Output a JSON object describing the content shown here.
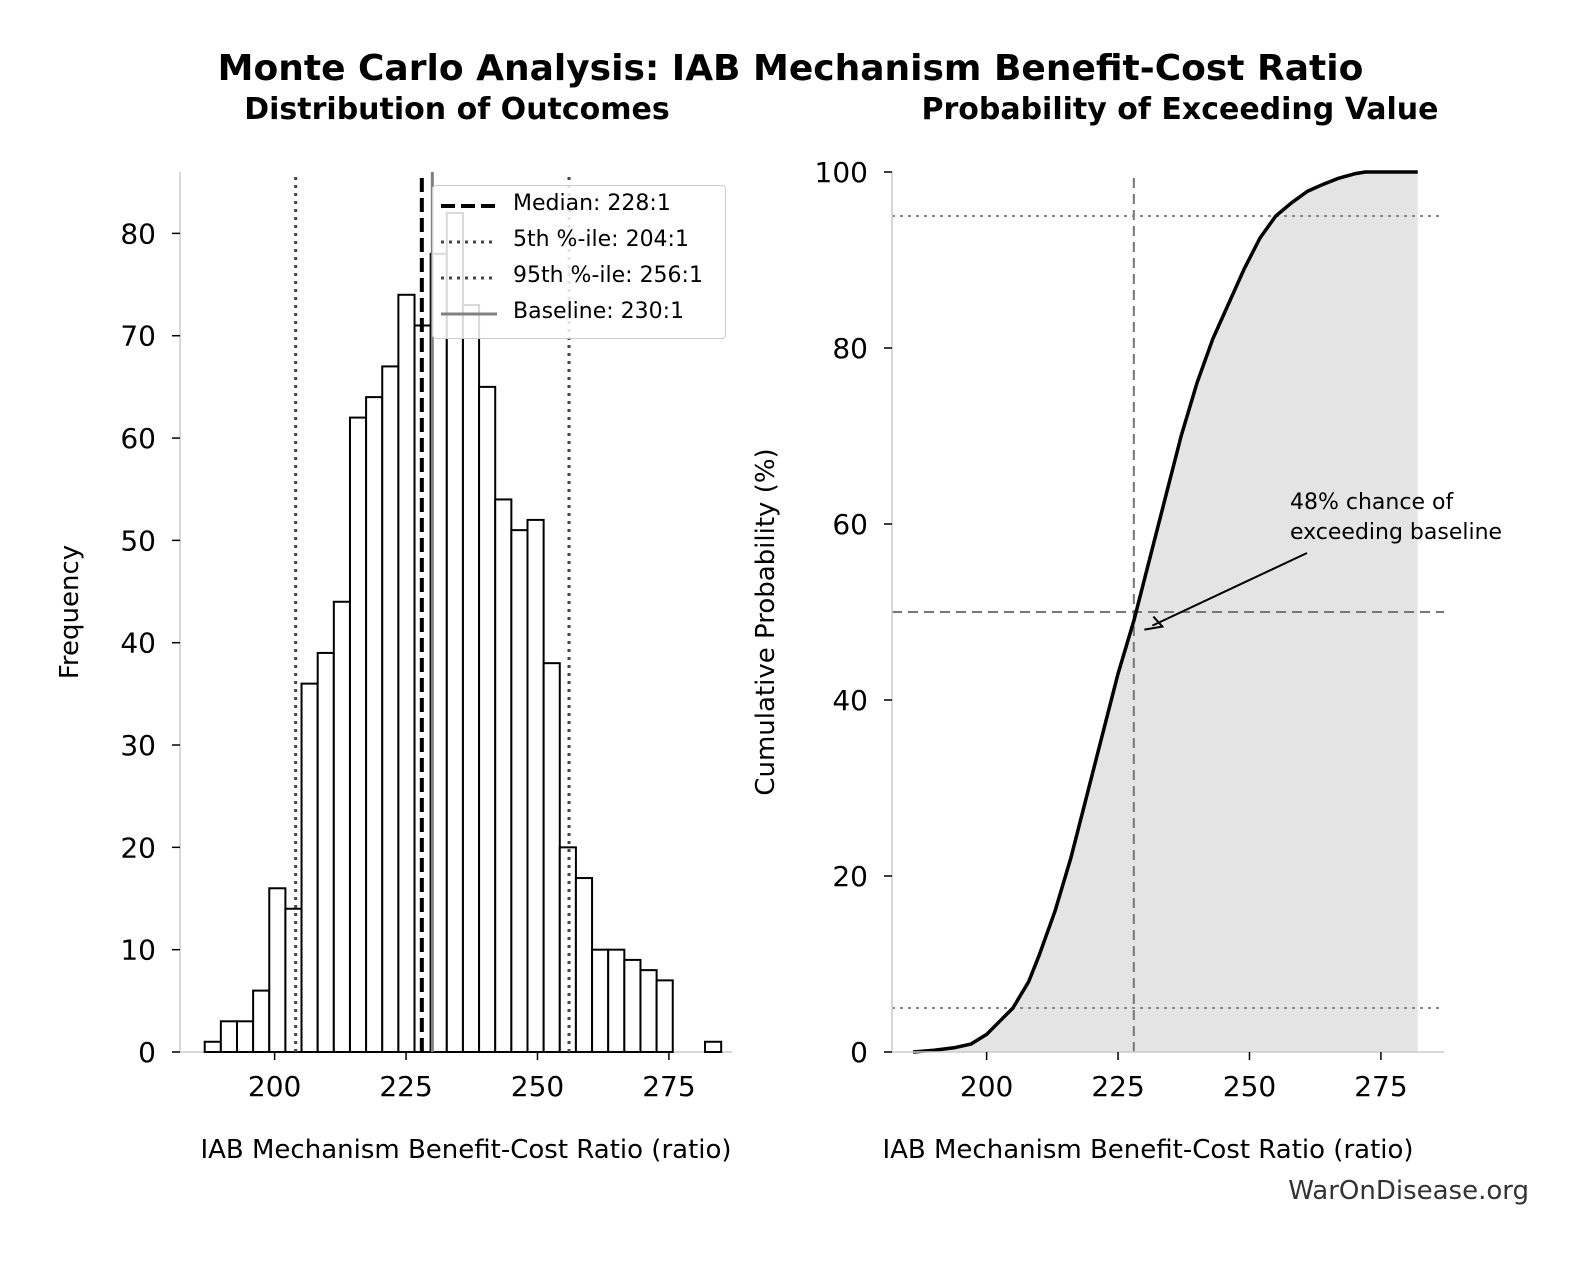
{
  "figure": {
    "title": "Monte Carlo Analysis: IAB Mechanism Benefit-Cost Ratio",
    "source": "WarOnDisease.org"
  },
  "chart_data": [
    {
      "type": "bar",
      "subtitle": "Distribution of Outcomes",
      "xlabel": "IAB Mechanism Benefit-Cost Ratio (ratio)",
      "ylabel": "Frequency",
      "xlim": [
        182,
        287
      ],
      "ylim": [
        0,
        86
      ],
      "xticks": [
        200,
        225,
        250,
        275
      ],
      "yticks": [
        0,
        10,
        20,
        30,
        40,
        50,
        60,
        70,
        80
      ],
      "bin_width": 3.07,
      "bin_edges_start": 186.7,
      "values": [
        1,
        3,
        3,
        6,
        16,
        14,
        36,
        39,
        44,
        62,
        64,
        67,
        74,
        71,
        78,
        82,
        73,
        65,
        54,
        51,
        52,
        38,
        20,
        17,
        10,
        10,
        9,
        8,
        7,
        0,
        0,
        1
      ],
      "reference_lines": [
        {
          "x": 228,
          "style": "dashed",
          "color": "#000000",
          "label": "Median: 228:1"
        },
        {
          "x": 204,
          "style": "dotted",
          "color": "#444444",
          "label": "5th %-ile: 204:1"
        },
        {
          "x": 256,
          "style": "dotted",
          "color": "#444444",
          "label": "95th %-ile: 256:1"
        },
        {
          "x": 230,
          "style": "solid",
          "color": "#808080",
          "label": "Baseline: 230:1"
        }
      ],
      "legend_position": "top-right",
      "grid": false
    },
    {
      "type": "area",
      "subtitle": "Probability of Exceeding Value",
      "xlabel": "IAB Mechanism Benefit-Cost Ratio (ratio)",
      "ylabel": "Cumulative Probability (%)",
      "xlim": [
        182,
        287
      ],
      "ylim": [
        0,
        100
      ],
      "xticks": [
        200,
        225,
        250,
        275
      ],
      "yticks": [
        0,
        20,
        40,
        60,
        80,
        100
      ],
      "curve": {
        "x": [
          186,
          190,
          194,
          197,
          200,
          203,
          205,
          208,
          210,
          213,
          216,
          219,
          222,
          225,
          228,
          231,
          234,
          237,
          240,
          243,
          246,
          249,
          252,
          255,
          258,
          261,
          264,
          267,
          270,
          272,
          282
        ],
        "y": [
          0,
          0.2,
          0.5,
          0.9,
          2,
          3.8,
          5,
          8,
          11,
          16,
          22,
          29,
          36,
          43,
          49,
          56,
          63,
          70,
          76,
          81,
          85,
          89,
          92.5,
          95,
          96.5,
          97.8,
          98.6,
          99.3,
          99.8,
          100,
          100
        ]
      },
      "reference_lines": [
        {
          "orientation": "vertical",
          "x": 228,
          "style": "dashed",
          "color": "#777777"
        },
        {
          "orientation": "horizontal",
          "y": 50,
          "style": "dashed",
          "color": "#777777"
        },
        {
          "orientation": "horizontal",
          "y": 5,
          "style": "dotted",
          "color": "#888888"
        },
        {
          "orientation": "horizontal",
          "y": 95,
          "style": "dotted",
          "color": "#888888"
        }
      ],
      "annotation": {
        "lines": [
          "48% chance of",
          "exceeding baseline"
        ],
        "point": {
          "x": 230,
          "y": 48
        }
      },
      "fill_color": "#e4e4e4",
      "grid": false
    }
  ]
}
